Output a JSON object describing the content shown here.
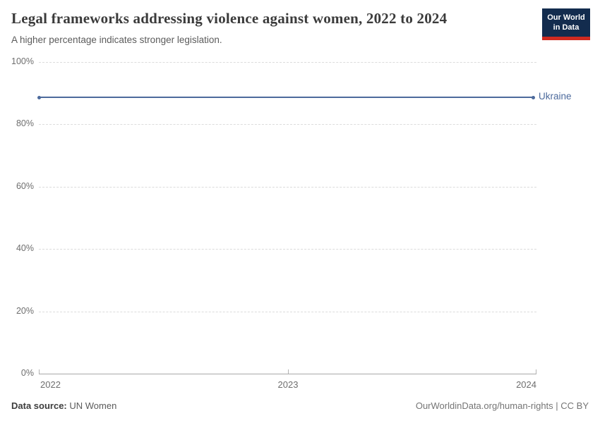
{
  "header": {
    "title": "Legal frameworks addressing violence against women, 2022 to 2024",
    "subtitle": "A higher percentage indicates stronger legislation.",
    "logo": {
      "line1": "Our World",
      "line2": "in Data",
      "bg": "#132c4e",
      "accent": "#d02a20"
    }
  },
  "chart_data": {
    "type": "line",
    "title": "Legal frameworks addressing violence against women, 2022 to 2024",
    "subtitle": "A higher percentage indicates stronger legislation.",
    "x": [
      2022,
      2024
    ],
    "series": [
      {
        "name": "Ukraine",
        "values": [
          88.75,
          88.75
        ],
        "color": "#4c6a9c"
      }
    ],
    "xlabel": "",
    "ylabel": "",
    "ylim": [
      0,
      100
    ],
    "xlim": [
      2022,
      2024
    ],
    "yticks": [
      {
        "label": "0%",
        "value": 0
      },
      {
        "label": "20%",
        "value": 20
      },
      {
        "label": "40%",
        "value": 40
      },
      {
        "label": "60%",
        "value": 60
      },
      {
        "label": "80%",
        "value": 80
      },
      {
        "label": "100%",
        "value": 100
      }
    ],
    "xticks": [
      {
        "label": "2022",
        "value": 2022
      },
      {
        "label": "2023",
        "value": 2023
      },
      {
        "label": "2024",
        "value": 2024
      }
    ],
    "grid": "horizontal-dashed",
    "legend": "line-end-label"
  },
  "footer": {
    "source_label": "Data source:",
    "source_value": "UN Women",
    "attribution": "OurWorldinData.org/human-rights | CC BY"
  },
  "theme": {
    "gridline_color": "#dcdcdc",
    "axis_color": "#a8a8a8",
    "tick_label_color": "#6e6e6e",
    "title_color": "#3b3b3b",
    "subtitle_color": "#5b5b5b",
    "series_color": "#4c6a9c"
  }
}
